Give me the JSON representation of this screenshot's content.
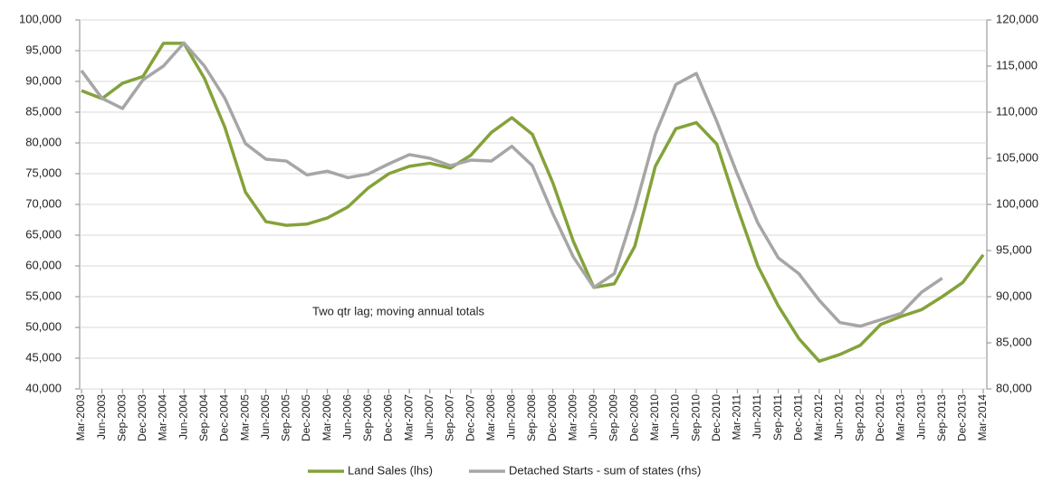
{
  "chart_data": {
    "type": "line",
    "annotation": "Two qtr lag; moving annual totals",
    "categories": [
      "Mar-2003",
      "Jun-2003",
      "Sep-2003",
      "Dec-2003",
      "Mar-2004",
      "Jun-2004",
      "Sep-2004",
      "Dec-2004",
      "Mar-2005",
      "Jun-2005",
      "Sep-2005",
      "Dec-2005",
      "Mar-2006",
      "Jun-2006",
      "Sep-2006",
      "Dec-2006",
      "Mar-2007",
      "Jun-2007",
      "Sep-2007",
      "Dec-2007",
      "Mar-2008",
      "Jun-2008",
      "Sep-2008",
      "Dec-2008",
      "Mar-2009",
      "Jun-2009",
      "Sep-2009",
      "Dec-2009",
      "Mar-2010",
      "Jun-2010",
      "Sep-2010",
      "Dec-2010",
      "Mar-2011",
      "Jun-2011",
      "Sep-2011",
      "Dec-2011",
      "Mar-2012",
      "Jun-2012",
      "Sep-2012",
      "Dec-2012",
      "Mar-2013",
      "Jun-2013",
      "Sep-2013",
      "Dec-2013",
      "Mar-2014"
    ],
    "series": [
      {
        "name": "Land Sales (lhs)",
        "color": "#84a23a",
        "axis": "y",
        "values": [
          88500,
          87200,
          89700,
          90800,
          96200,
          96200,
          90500,
          82500,
          72000,
          67200,
          66600,
          66800,
          67800,
          69600,
          72700,
          75000,
          76200,
          76700,
          75900,
          78000,
          81700,
          84100,
          81400,
          73500,
          64000,
          56500,
          57100,
          63200,
          76200,
          82300,
          83300,
          79800,
          69500,
          60000,
          53500,
          48200,
          44500,
          45600,
          47100,
          50500,
          51800,
          52900,
          55000,
          57300,
          61800
        ]
      },
      {
        "name": "Detached Starts - sum of states (rhs)",
        "color": "#a6a6a6",
        "axis": "y2",
        "values": [
          114500,
          111500,
          110400,
          113500,
          115000,
          117500,
          115000,
          111500,
          106600,
          104900,
          104700,
          103200,
          103600,
          102900,
          103300,
          104400,
          105400,
          105000,
          104200,
          104800,
          104700,
          106300,
          104200,
          99000,
          94300,
          91000,
          92500,
          99500,
          107600,
          113000,
          114200,
          109000,
          103300,
          98000,
          94200,
          92500,
          89600,
          87200,
          86800,
          87500,
          88200,
          90500,
          92000,
          null,
          null
        ]
      }
    ],
    "ylim": [
      40000,
      100000
    ],
    "yticks": [
      {
        "value": 40000,
        "label": "40,000"
      },
      {
        "value": 45000,
        "label": "45,000"
      },
      {
        "value": 50000,
        "label": "50,000"
      },
      {
        "value": 55000,
        "label": "55,000"
      },
      {
        "value": 60000,
        "label": "60,000"
      },
      {
        "value": 65000,
        "label": "65,000"
      },
      {
        "value": 70000,
        "label": "70,000"
      },
      {
        "value": 75000,
        "label": "75,000"
      },
      {
        "value": 80000,
        "label": "80,000"
      },
      {
        "value": 85000,
        "label": "85,000"
      },
      {
        "value": 90000,
        "label": "90,000"
      },
      {
        "value": 95000,
        "label": "95,000"
      },
      {
        "value": 100000,
        "label": "100,000"
      }
    ],
    "y2lim": [
      80000,
      120000
    ],
    "y2ticks": [
      {
        "value": 80000,
        "label": "80,000"
      },
      {
        "value": 85000,
        "label": "85,000"
      },
      {
        "value": 90000,
        "label": "90,000"
      },
      {
        "value": 95000,
        "label": "95,000"
      },
      {
        "value": 100000,
        "label": "100,000"
      },
      {
        "value": 105000,
        "label": "105,000"
      },
      {
        "value": 110000,
        "label": "110,000"
      },
      {
        "value": 115000,
        "label": "115,000"
      },
      {
        "value": 120000,
        "label": "120,000"
      }
    ],
    "grid": true
  }
}
